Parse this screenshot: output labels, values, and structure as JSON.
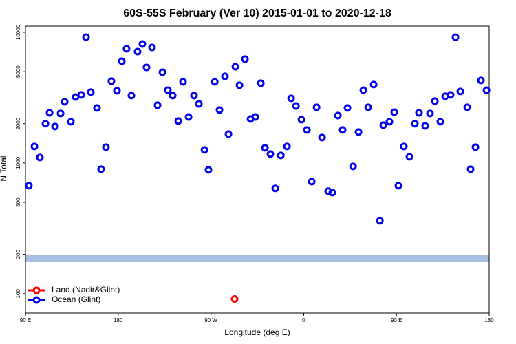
{
  "chart_data": {
    "type": "scatter",
    "title": "60S-55S February (Ver 10)   2015-01-01 to 2020-12-18",
    "x_label": "Longitude (deg E)",
    "y_label": "N Total",
    "xlim": [
      90,
      540
    ],
    "xticks": [
      {
        "value": 90,
        "label": "90 E"
      },
      180,
      {
        "value": 270,
        "label": "90 W"
      },
      {
        "value": 360,
        "label": "0"
      },
      {
        "value": 450,
        "label": "90 E"
      },
      {
        "value": 540,
        "label": "180"
      }
    ],
    "ylim": [
      71,
      11150
    ],
    "yticks": [
      100,
      200,
      500,
      1000,
      2000,
      5000,
      10000
    ],
    "y_scale": "log",
    "legend": "bottom-left",
    "series": [
      {
        "name": "Land (Nadir&Glint)",
        "color": "#ff0000",
        "x": [
          293
        ],
        "values": [
          91
        ]
      },
      {
        "name": "Ocean (Glint)",
        "color": "#0000ee",
        "x": [
          93.3,
          98.7,
          104,
          109.4,
          113.4,
          118.7,
          124.1,
          128.1,
          134.1,
          138.7,
          144.1,
          148.8,
          153.4,
          159.4,
          163.4,
          168.1,
          173.4,
          178.8,
          183.5,
          188.1,
          192.8,
          198.8,
          203.5,
          207.5,
          212.8,
          218.2,
          222.9,
          228.2,
          232.9,
          238.3,
          242.9,
          248.3,
          253.6,
          258.3,
          263.7,
          267.6,
          273.7,
          278.3,
          283.6,
          287,
          293.7,
          297.7,
          303,
          308.4,
          313,
          318.4,
          322.4,
          327.7,
          332.4,
          337.8,
          343.8,
          347.8,
          352.5,
          357.8,
          363.1,
          367.8,
          372.5,
          377.8,
          383.8,
          387.8,
          393.2,
          397.8,
          402.5,
          407.9,
          413.2,
          417.9,
          422.6,
          427.9,
          433.9,
          437.3,
          443.2,
          447.9,
          451.9,
          457.2,
          462.6,
          467.9,
          471.9,
          477.9,
          482.6,
          487.3,
          492.6,
          497.3,
          502.6,
          507.3,
          512,
          518.7,
          522,
          526.7,
          532,
          537.4
        ],
        "values": [
          670,
          1337,
          1102,
          2000,
          2421,
          1901,
          2393,
          2940,
          2070,
          3200,
          3320,
          9180,
          3485,
          2637,
          897,
          1321,
          4230,
          3570,
          6010,
          7480,
          3280,
          7120,
          8140,
          5390,
          7660,
          2770,
          4950,
          3610,
          3280,
          2095,
          4180,
          2250,
          3280,
          2835,
          1259,
          886,
          4180,
          2543,
          4605,
          1664,
          5455,
          3935,
          6235,
          2172,
          2250,
          4080,
          1305,
          1170,
          639,
          1143,
          1337,
          3125,
          2733,
          2146,
          1789,
          721,
          2669,
          1566,
          609,
          594,
          2307,
          1789,
          2637,
          941,
          1725,
          3610,
          2669,
          3981,
          361,
          1947,
          2070,
          2450,
          670,
          1337,
          1115,
          2000,
          2421,
          1924,
          2393,
          2976,
          2070,
          3242,
          3320,
          9180,
          3527,
          2669,
          897,
          1321,
          4283,
          3610
        ]
      }
    ]
  }
}
